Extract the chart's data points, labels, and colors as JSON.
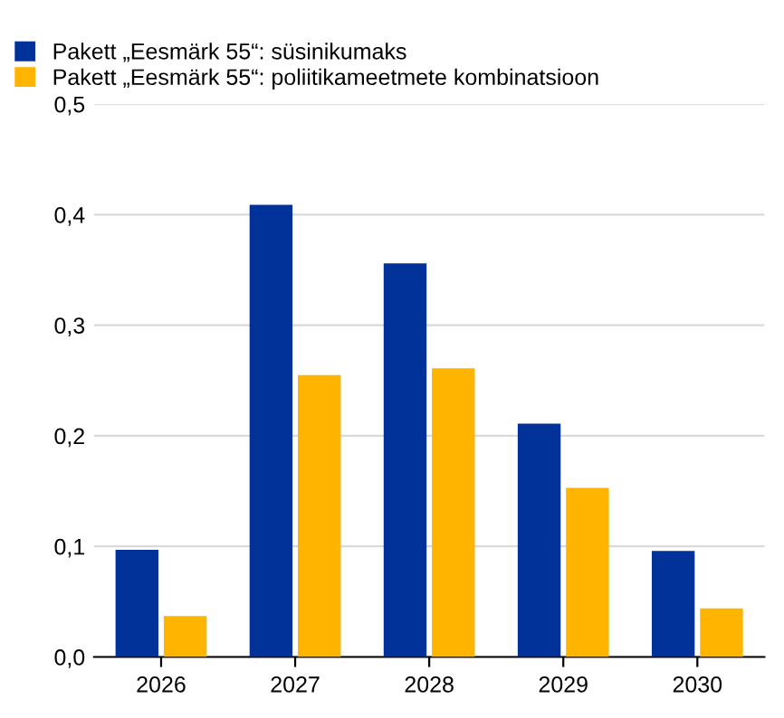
{
  "chart_data": {
    "type": "bar",
    "categories": [
      "2026",
      "2027",
      "2028",
      "2029",
      "2030"
    ],
    "series": [
      {
        "name": "Pakett „Eesmärk 55“: süsinikumaks",
        "color": "#003299",
        "values": [
          0.097,
          0.409,
          0.356,
          0.211,
          0.096
        ]
      },
      {
        "name": "Pakett „Eesmärk 55“: poliitikameetmete kombinatsioon",
        "color": "#ffb400",
        "values": [
          0.037,
          0.255,
          0.261,
          0.153,
          0.044
        ]
      }
    ],
    "ylim": [
      0,
      0.5
    ],
    "yticks": [
      {
        "value": 0,
        "label": "0,0"
      },
      {
        "value": 0.1,
        "label": "0,1"
      },
      {
        "value": 0.2,
        "label": "0,2"
      },
      {
        "value": 0.3,
        "label": "0,3"
      },
      {
        "value": 0.4,
        "label": "0,4"
      },
      {
        "value": 0.5,
        "label": "0,5"
      }
    ],
    "grid": "y",
    "legend": "top left"
  }
}
